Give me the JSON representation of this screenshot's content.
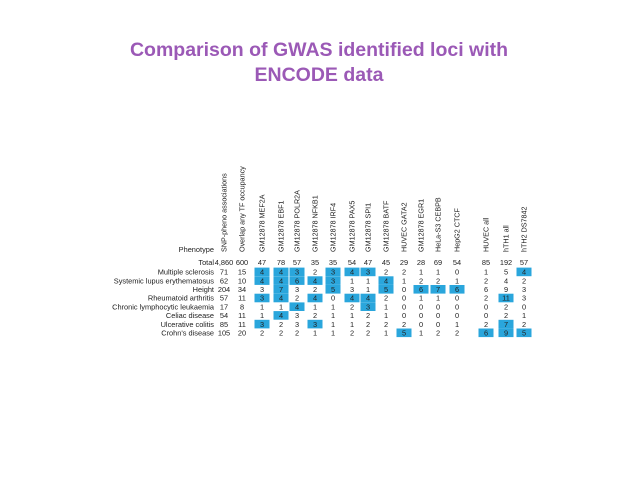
{
  "slide": {
    "title_line1": "Comparison of GWAS identified loci with",
    "title_line2": "ENCODE data"
  },
  "table": {
    "highlight_color": "#2aa6dc",
    "phenotype_header": "Phenotype",
    "total_label": "Total",
    "column_headers": [
      "SNP-pheno associations",
      "Overlap any TF occupancy",
      "GM12878 MEF2A",
      "GM12878 EBF1",
      "GM12878 POLR2A",
      "GM12878 NFKB1",
      "GM12878 IRF4",
      "GM12878 PAX5",
      "GM12878 SPI1",
      "GM12878 BATF",
      "HUVEC GATA2",
      "GM12878 EGR1",
      "HeLa-S3 CEBPB",
      "HepG2 CTCF",
      "HUVEC all",
      "hTH1 all",
      "hTH2 DS7842"
    ],
    "totals": [
      "4,860",
      "600",
      "47",
      "78",
      "57",
      "35",
      "35",
      "54",
      "47",
      "45",
      "29",
      "28",
      "69",
      "54",
      "85",
      "192",
      "57"
    ],
    "rows": [
      {
        "label": "Multiple sclerosis",
        "values": [
          "71",
          "15",
          "4",
          "4",
          "3",
          "2",
          "3",
          "4",
          "3",
          "2",
          "2",
          "1",
          "1",
          "0",
          "1",
          "5",
          "4"
        ],
        "highlight": [
          2,
          3,
          4,
          6,
          7,
          8,
          16
        ]
      },
      {
        "label": "Systemic lupus erythematosus",
        "values": [
          "62",
          "10",
          "4",
          "4",
          "6",
          "4",
          "3",
          "1",
          "1",
          "4",
          "1",
          "2",
          "2",
          "1",
          "2",
          "4",
          "2"
        ],
        "highlight": [
          2,
          3,
          4,
          5,
          6,
          9
        ]
      },
      {
        "label": "Height",
        "values": [
          "204",
          "34",
          "3",
          "7",
          "3",
          "2",
          "5",
          "3",
          "1",
          "5",
          "0",
          "6",
          "7",
          "6",
          "6",
          "9",
          "3"
        ],
        "highlight": [
          3,
          6,
          9,
          11,
          12,
          13
        ]
      },
      {
        "label": "Rheumatoid arthritis",
        "values": [
          "57",
          "11",
          "3",
          "4",
          "2",
          "4",
          "0",
          "4",
          "4",
          "2",
          "0",
          "1",
          "1",
          "0",
          "2",
          "11",
          "3"
        ],
        "highlight": [
          2,
          3,
          5,
          7,
          8,
          15
        ]
      },
      {
        "label": "Chronic lymphocytic leukaemia",
        "values": [
          "17",
          "8",
          "1",
          "1",
          "4",
          "1",
          "1",
          "2",
          "3",
          "1",
          "0",
          "0",
          "0",
          "0",
          "0",
          "2",
          "0"
        ],
        "highlight": [
          4,
          8
        ]
      },
      {
        "label": "Celiac disease",
        "values": [
          "54",
          "11",
          "1",
          "4",
          "3",
          "2",
          "1",
          "1",
          "2",
          "1",
          "0",
          "0",
          "0",
          "0",
          "0",
          "2",
          "1"
        ],
        "highlight": [
          3
        ]
      },
      {
        "label": "Ulcerative colitis",
        "values": [
          "85",
          "11",
          "3",
          "2",
          "3",
          "3",
          "1",
          "1",
          "2",
          "2",
          "2",
          "0",
          "0",
          "1",
          "2",
          "7",
          "2"
        ],
        "highlight": [
          2,
          5,
          15
        ]
      },
      {
        "label": "Crohn's disease",
        "values": [
          "105",
          "20",
          "2",
          "2",
          "2",
          "1",
          "1",
          "2",
          "2",
          "1",
          "5",
          "1",
          "2",
          "2",
          "6",
          "9",
          "5"
        ],
        "highlight": [
          10,
          14,
          15,
          16
        ]
      }
    ]
  }
}
